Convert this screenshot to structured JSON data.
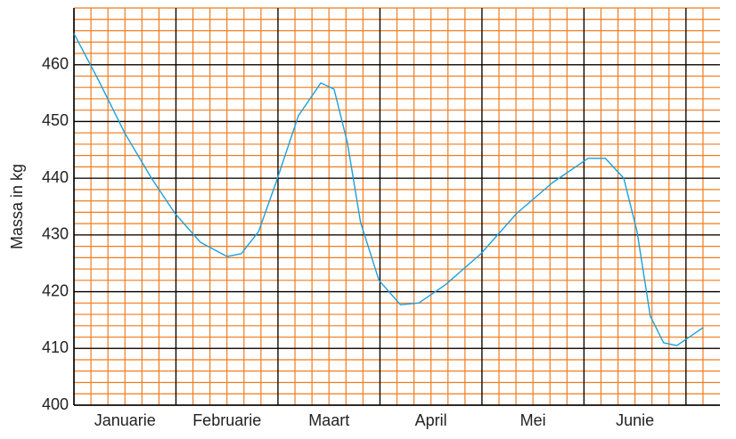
{
  "chart_data": {
    "type": "line",
    "y_label": "Massa in kg",
    "categories": [
      "Januarie",
      "Februarie",
      "Maart",
      "April",
      "Mei",
      "Junie"
    ],
    "x": [
      0,
      0.24,
      0.5,
      0.76,
      0.99,
      1.24,
      1.5,
      1.64,
      1.81,
      1.98,
      2.2,
      2.42,
      2.55,
      2.68,
      2.81,
      2.99,
      3.2,
      3.38,
      3.64,
      3.99,
      4.34,
      4.69,
      5.04,
      5.21,
      5.39,
      5.52,
      5.65,
      5.78,
      5.91,
      6.04,
      6.17
    ],
    "series": [
      {
        "name": "Massa",
        "color": "#1aa0dc",
        "values": [
          465.5,
          457.3,
          447.9,
          440,
          433.8,
          428.7,
          426.2,
          426.7,
          430.6,
          439.2,
          451,
          456.8,
          455.7,
          446.3,
          432.2,
          422,
          417.7,
          418,
          421.2,
          426.7,
          433.8,
          439.2,
          443.5,
          443.5,
          440,
          430.6,
          415.7,
          411,
          410.5,
          412.1,
          413.7
        ]
      }
    ],
    "xlim": [
      0,
      6.333
    ],
    "ylim": [
      400,
      470
    ],
    "yticks": [
      400,
      410,
      420,
      430,
      440,
      450,
      460
    ],
    "grid": true,
    "grid_color": "#f07c1e",
    "major_grid_color": "#000000",
    "x_minor_divisions": 6,
    "y_minor_divisions": 5
  }
}
